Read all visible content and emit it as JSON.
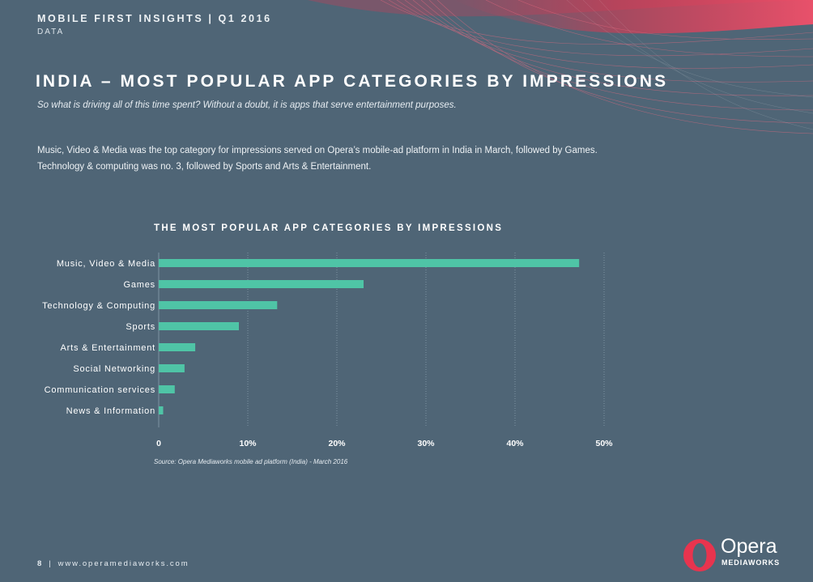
{
  "header": {
    "title": "MOBILE FIRST INSIGHTS | Q1 2016",
    "subtitle": "DATA"
  },
  "page_title": "INDIA – MOST POPULAR APP CATEGORIES BY IMPRESSIONS",
  "subtitle": "So what is driving all of this time spent? Without a doubt, it is apps that serve entertainment purposes.",
  "body_text": "Music, Video & Media was the top category for impressions served on Opera’s mobile-ad platform in India in March, followed by Games. Technology & computing was no. 3, followed by Sports and Arts & Entertainment.",
  "source": "Source: Opera Mediaworks mobile ad platform (India) - March 2016",
  "footer": {
    "page_number": "8",
    "separator": "|",
    "url": "www.operamediaworks.com"
  },
  "logo": {
    "name": "Opera",
    "sub": "MEDIAWORKS"
  },
  "colors": {
    "background": "#4f6576",
    "bar": "#4fc4a6",
    "accent": "#e8344e"
  },
  "chart_data": {
    "type": "bar",
    "orientation": "horizontal",
    "title": "THE MOST POPULAR APP CATEGORIES BY IMPRESSIONS",
    "categories": [
      "Music, Video & Media",
      "Games",
      "Technology & Computing",
      "Sports",
      "Arts & Entertainment",
      "Social Networking",
      "Communication services",
      "News & Information"
    ],
    "values": [
      47.2,
      23.0,
      13.3,
      9.0,
      4.1,
      2.9,
      1.8,
      0.5
    ],
    "unit": "%",
    "xlim": [
      0,
      50
    ],
    "xticks": [
      0,
      10,
      20,
      30,
      40,
      50
    ],
    "xtick_labels": [
      "0",
      "10%",
      "20%",
      "30%",
      "40%",
      "50%"
    ],
    "xlabel": "",
    "ylabel": "",
    "grid": true
  }
}
